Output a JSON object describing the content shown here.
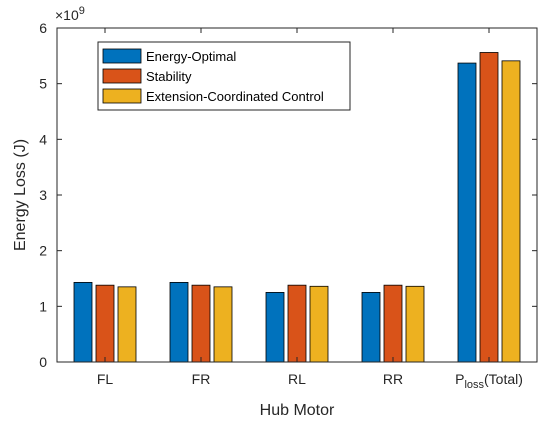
{
  "chart_data": {
    "type": "bar",
    "categories": [
      "FL",
      "FR",
      "RL",
      "RR",
      "Ploss(Total)"
    ],
    "category_labels": [
      {
        "main": "FL"
      },
      {
        "main": "FR"
      },
      {
        "main": "RL"
      },
      {
        "main": "RR"
      },
      {
        "main": "P",
        "sub": "loss",
        "rest": "(Total)"
      }
    ],
    "series": [
      {
        "name": "Energy-Optimal",
        "color": "#0072BD",
        "values": [
          1.43,
          1.43,
          1.25,
          1.25,
          5.37
        ]
      },
      {
        "name": "Stability",
        "color": "#D95319",
        "values": [
          1.38,
          1.38,
          1.38,
          1.38,
          5.56
        ]
      },
      {
        "name": "Extension-Coordinated Control",
        "color": "#EDB120",
        "values": [
          1.35,
          1.35,
          1.36,
          1.36,
          5.41
        ]
      }
    ],
    "xlabel": "Hub Motor",
    "ylabel": "Energy Loss (J)",
    "ylim": [
      0,
      6
    ],
    "yticks": [
      0,
      1,
      2,
      3,
      4,
      5,
      6
    ],
    "y_exponent": {
      "base": "×10",
      "power": "9"
    },
    "legend_position": "top-left",
    "grid": false
  }
}
